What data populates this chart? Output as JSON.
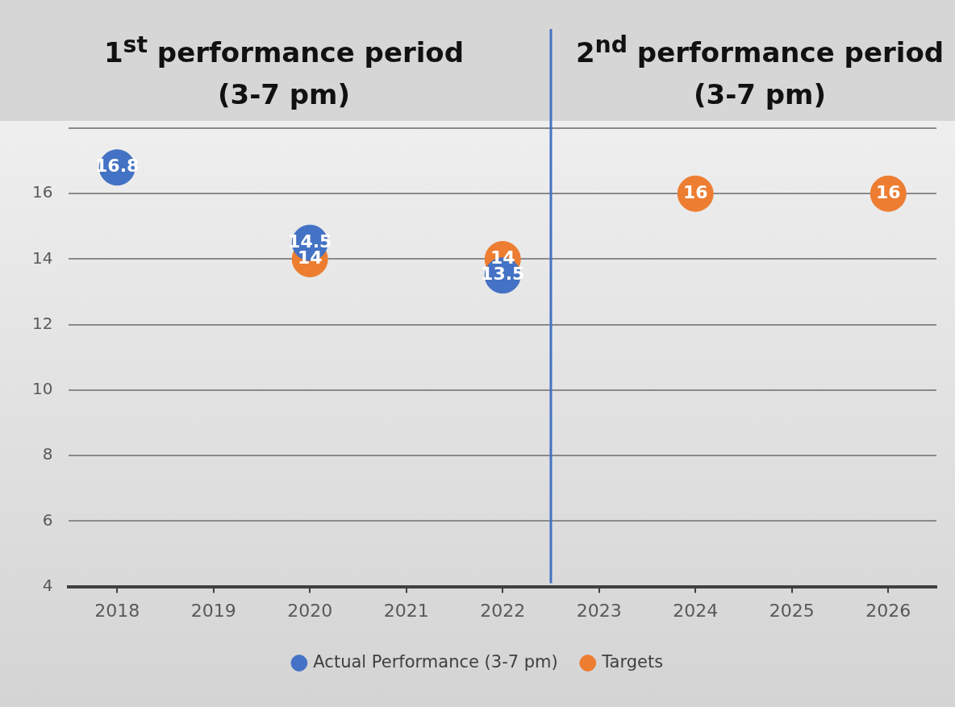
{
  "chart_data": {
    "type": "scatter",
    "annotations": [
      "1$^{st}$ performance period (3-7 pm)",
      "2$^{nd}$ performance period (3-7 pm)"
    ],
    "x": [
      2018,
      2019,
      2020,
      2021,
      2022,
      2023,
      2024,
      2025,
      2026
    ],
    "series": [
      {
        "name": "Actual Performance (3-7 pm)",
        "color": "#4472c4",
        "values": [
          16.8,
          null,
          14.5,
          null,
          13.5,
          null,
          null,
          null,
          null
        ]
      },
      {
        "name": "Targets",
        "color": "#ed7d31",
        "values": [
          null,
          null,
          14,
          null,
          14,
          null,
          16,
          null,
          16
        ]
      }
    ],
    "xlim": [
      2017.5,
      2026.5
    ],
    "xticks": [
      2018,
      2019,
      2020,
      2021,
      2022,
      2023,
      2024,
      2025,
      2026
    ],
    "ylim": [
      4,
      18
    ],
    "yticks": [
      4,
      6,
      8,
      10,
      12,
      14,
      16,
      {
        "value": 18,
        "label": null
      }
    ],
    "ref_lines": [
      {
        "axis": "x",
        "value": 2022.5,
        "color": "#4472c4"
      }
    ],
    "grid": "y",
    "legend": "bottom",
    "marker": "circle",
    "data_labels": true
  }
}
